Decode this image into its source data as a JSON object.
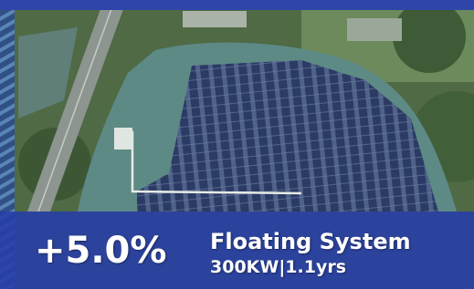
{
  "overlay": {
    "change": "+5.0%",
    "title": "Floating System",
    "details": "300KW|1.1yrs"
  }
}
